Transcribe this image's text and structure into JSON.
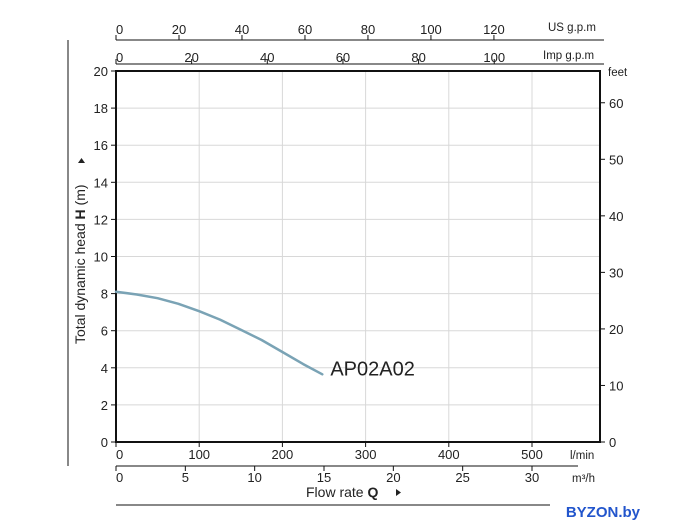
{
  "chart_data": {
    "type": "line",
    "ylabel_prefix": "Total dynamic head ",
    "ylabel_bold": "H",
    "ylabel_suffix": " (m)",
    "xlabel_prefix": "Flow rate ",
    "xlabel_bold": "Q",
    "x_unit": "l/min",
    "x_unit_m3h": "m³/h",
    "right_unit": "feet",
    "top_unit_us": "US g.p.m",
    "top_unit_imp": "Imp g.p.m",
    "xlim": [
      0,
      580
    ],
    "ylim": [
      0,
      20
    ],
    "x_ticks": [
      0,
      100,
      200,
      300,
      400,
      500
    ],
    "y_ticks": [
      0,
      2,
      4,
      6,
      8,
      10,
      12,
      14,
      16,
      18,
      20
    ],
    "m3h_ticks": [
      0,
      5,
      10,
      15,
      20,
      25,
      30
    ],
    "feet_ticks": [
      0,
      10,
      20,
      30,
      40,
      50,
      60
    ],
    "us_gpm_ticks": [
      0,
      20,
      40,
      60,
      80,
      100,
      120
    ],
    "imp_gpm_ticks": [
      0,
      20,
      40,
      60,
      80,
      100
    ],
    "series": [
      {
        "name": "AP02A02",
        "color": "#7aa3b5",
        "x": [
          0,
          25,
          50,
          75,
          100,
          125,
          150,
          175,
          200,
          225,
          248
        ],
        "y": [
          8.1,
          7.95,
          7.75,
          7.45,
          7.05,
          6.6,
          6.05,
          5.5,
          4.85,
          4.2,
          3.65
        ]
      }
    ]
  },
  "watermark": "BYZON.by"
}
